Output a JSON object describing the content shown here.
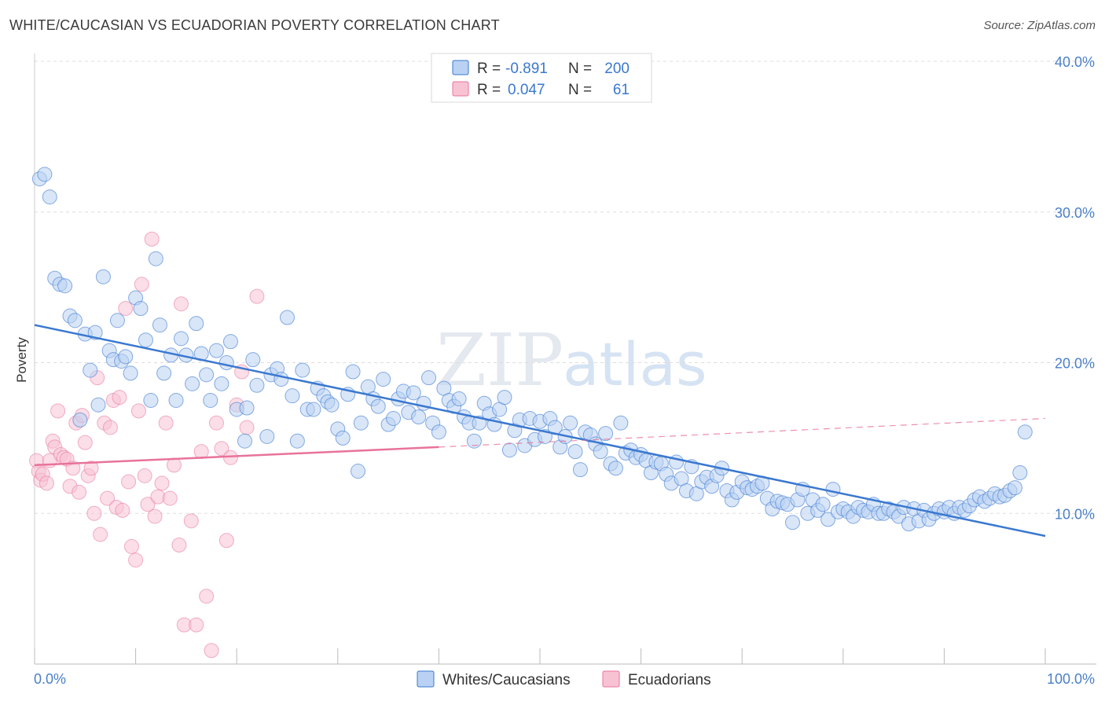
{
  "header": {
    "title": "WHITE/CAUCASIAN VS ECUADORIAN POVERTY CORRELATION CHART",
    "source": "Source: ZipAtlas.com"
  },
  "colors": {
    "blue": "#3a78d0",
    "blue_fill": "#b9d2f3",
    "pink": "#e8739a",
    "pink_fill": "#f7c3d3",
    "grid": "#dddddd"
  },
  "legend": {
    "r_label": "R =",
    "n_label": "N =",
    "rows": [
      {
        "series": "Whites/Caucasians",
        "r": "-0.891",
        "n": "200"
      },
      {
        "series": "Ecuadorians",
        "r": "0.047",
        "n": "61"
      }
    ]
  },
  "chart_data": {
    "type": "scatter",
    "title": "WHITE/CAUCASIAN VS ECUADORIAN POVERTY CORRELATION CHART",
    "xlabel": "",
    "ylabel": "Poverty",
    "xlim": [
      0,
      100
    ],
    "ylim": [
      0,
      40
    ],
    "x_tick_labels": [
      "0.0%",
      "100.0%"
    ],
    "y_ticks": [
      10,
      20,
      30,
      40
    ],
    "y_tick_labels": [
      "10.0%",
      "20.0%",
      "30.0%",
      "40.0%"
    ],
    "grid": "horizontal dashed",
    "legend_position": "top-center",
    "bottom_legend": [
      "Whites/Caucasians",
      "Ecuadorians"
    ],
    "series": [
      {
        "name": "Whites/Caucasians",
        "trend": {
          "x0": 0,
          "y0": 22.5,
          "x1": 100,
          "y1": 8.5
        },
        "points": [
          [
            0.5,
            32.2
          ],
          [
            1,
            32.5
          ],
          [
            1.5,
            31
          ],
          [
            2,
            25.6
          ],
          [
            2.5,
            25.2
          ],
          [
            3,
            25.1
          ],
          [
            3.5,
            23.1
          ],
          [
            4,
            22.8
          ],
          [
            4.5,
            16.2
          ],
          [
            5,
            21.9
          ],
          [
            5.5,
            19.5
          ],
          [
            6,
            22
          ],
          [
            6.3,
            17.2
          ],
          [
            6.8,
            25.7
          ],
          [
            7.4,
            20.8
          ],
          [
            7.8,
            20.2
          ],
          [
            8.2,
            22.8
          ],
          [
            8.6,
            20.1
          ],
          [
            9,
            20.4
          ],
          [
            9.5,
            19.3
          ],
          [
            10,
            24.3
          ],
          [
            10.5,
            23.6
          ],
          [
            11,
            21.5
          ],
          [
            11.5,
            17.5
          ],
          [
            12,
            26.9
          ],
          [
            12.4,
            22.5
          ],
          [
            12.8,
            19.3
          ],
          [
            13.5,
            20.5
          ],
          [
            14,
            17.5
          ],
          [
            14.5,
            21.6
          ],
          [
            15,
            20.5
          ],
          [
            15.6,
            18.6
          ],
          [
            16,
            22.6
          ],
          [
            16.5,
            20.6
          ],
          [
            17,
            19.2
          ],
          [
            17.4,
            17.5
          ],
          [
            18,
            20.8
          ],
          [
            18.5,
            18.6
          ],
          [
            19,
            20
          ],
          [
            19.4,
            21.4
          ],
          [
            20,
            16.9
          ],
          [
            20.8,
            14.8
          ],
          [
            21,
            17
          ],
          [
            21.6,
            20.2
          ],
          [
            22,
            18.5
          ],
          [
            23,
            15.1
          ],
          [
            23.4,
            19.2
          ],
          [
            24,
            19.6
          ],
          [
            24.4,
            18.9
          ],
          [
            25,
            23
          ],
          [
            25.5,
            17.8
          ],
          [
            26,
            14.8
          ],
          [
            26.5,
            19.5
          ],
          [
            27,
            16.9
          ],
          [
            27.6,
            16.9
          ],
          [
            28,
            18.3
          ],
          [
            28.6,
            17.8
          ],
          [
            29,
            17.4
          ],
          [
            29.4,
            17.2
          ],
          [
            30,
            15.6
          ],
          [
            30.5,
            15
          ],
          [
            31,
            17.9
          ],
          [
            31.5,
            19.4
          ],
          [
            32,
            12.8
          ],
          [
            32.3,
            16
          ],
          [
            33,
            18.4
          ],
          [
            33.5,
            17.6
          ],
          [
            34,
            17.1
          ],
          [
            34.5,
            18.9
          ],
          [
            35,
            15.9
          ],
          [
            35.5,
            16.3
          ],
          [
            36,
            17.6
          ],
          [
            36.5,
            18.1
          ],
          [
            37,
            16.7
          ],
          [
            37.5,
            18
          ],
          [
            38,
            16.4
          ],
          [
            38.5,
            17.3
          ],
          [
            39,
            19
          ],
          [
            39.4,
            16
          ],
          [
            40,
            15.4
          ],
          [
            40.5,
            18.3
          ],
          [
            41,
            17.5
          ],
          [
            41.5,
            17.1
          ],
          [
            42,
            17.6
          ],
          [
            42.5,
            16.4
          ],
          [
            43,
            16
          ],
          [
            43.5,
            14.8
          ],
          [
            44,
            16
          ],
          [
            44.5,
            17.3
          ],
          [
            45,
            16.6
          ],
          [
            45.5,
            15.9
          ],
          [
            46,
            16.9
          ],
          [
            46.5,
            17.7
          ],
          [
            47,
            14.2
          ],
          [
            47.5,
            15.5
          ],
          [
            48,
            16.2
          ],
          [
            48.5,
            14.5
          ],
          [
            49,
            16.3
          ],
          [
            49.5,
            14.9
          ],
          [
            50,
            16.1
          ],
          [
            50.5,
            15.1
          ],
          [
            51,
            16.3
          ],
          [
            51.5,
            15.7
          ],
          [
            52,
            14.4
          ],
          [
            52.5,
            15.1
          ],
          [
            53,
            16
          ],
          [
            53.5,
            14.1
          ],
          [
            54,
            12.9
          ],
          [
            54.5,
            15.4
          ],
          [
            55,
            15.2
          ],
          [
            55.5,
            14.6
          ],
          [
            56,
            14.1
          ],
          [
            56.5,
            15.3
          ],
          [
            57,
            13.3
          ],
          [
            57.5,
            13
          ],
          [
            58,
            16
          ],
          [
            58.5,
            14
          ],
          [
            59,
            14.2
          ],
          [
            59.5,
            13.7
          ],
          [
            60,
            13.9
          ],
          [
            60.5,
            13.5
          ],
          [
            61,
            12.7
          ],
          [
            61.5,
            13.4
          ],
          [
            62,
            13.3
          ],
          [
            62.5,
            12.6
          ],
          [
            63,
            12
          ],
          [
            63.5,
            13.4
          ],
          [
            64,
            12.3
          ],
          [
            64.5,
            11.5
          ],
          [
            65,
            13.1
          ],
          [
            65.5,
            11.3
          ],
          [
            66,
            12.1
          ],
          [
            66.5,
            12.4
          ],
          [
            67,
            11.8
          ],
          [
            67.5,
            12.5
          ],
          [
            68,
            13
          ],
          [
            68.5,
            11.5
          ],
          [
            69,
            10.9
          ],
          [
            69.5,
            11.4
          ],
          [
            70,
            12.1
          ],
          [
            70.5,
            11.7
          ],
          [
            71,
            11.6
          ],
          [
            71.5,
            11.8
          ],
          [
            72,
            12
          ],
          [
            72.5,
            11
          ],
          [
            73,
            10.3
          ],
          [
            73.5,
            10.8
          ],
          [
            74,
            10.7
          ],
          [
            74.5,
            10.6
          ],
          [
            75,
            9.4
          ],
          [
            75.5,
            10.9
          ],
          [
            76,
            11.6
          ],
          [
            76.5,
            10
          ],
          [
            77,
            10.9
          ],
          [
            77.5,
            10.2
          ],
          [
            78,
            10.6
          ],
          [
            78.5,
            9.6
          ],
          [
            79,
            11.6
          ],
          [
            79.5,
            10.1
          ],
          [
            80,
            10.3
          ],
          [
            80.5,
            10.1
          ],
          [
            81,
            9.8
          ],
          [
            81.5,
            10.4
          ],
          [
            82,
            10.2
          ],
          [
            82.5,
            10.1
          ],
          [
            83,
            10.6
          ],
          [
            83.5,
            10
          ],
          [
            84,
            10
          ],
          [
            84.5,
            10.3
          ],
          [
            85,
            10.1
          ],
          [
            85.5,
            9.8
          ],
          [
            86,
            10.4
          ],
          [
            86.5,
            9.3
          ],
          [
            87,
            10.3
          ],
          [
            87.5,
            9.5
          ],
          [
            88,
            10.2
          ],
          [
            88.5,
            9.6
          ],
          [
            89,
            10
          ],
          [
            89.5,
            10.3
          ],
          [
            90,
            10.1
          ],
          [
            90.5,
            10.4
          ],
          [
            91,
            10
          ],
          [
            91.5,
            10.4
          ],
          [
            92,
            10.2
          ],
          [
            92.5,
            10.5
          ],
          [
            93,
            10.9
          ],
          [
            93.5,
            11.1
          ],
          [
            94,
            10.8
          ],
          [
            94.5,
            11
          ],
          [
            95,
            11.3
          ],
          [
            95.5,
            11.1
          ],
          [
            96,
            11.2
          ],
          [
            96.5,
            11.5
          ],
          [
            97,
            11.7
          ],
          [
            97.5,
            12.7
          ],
          [
            98,
            15.4
          ]
        ]
      },
      {
        "name": "Ecuadorians",
        "trend": {
          "x0": 0,
          "y0": 13.2,
          "x1": 40,
          "y1": 14.4,
          "dashed_x1": 100,
          "dashed_y1": 16.3
        },
        "points": [
          [
            0.2,
            13.5
          ],
          [
            0.4,
            12.8
          ],
          [
            0.6,
            12.2
          ],
          [
            0.8,
            12.6
          ],
          [
            1.2,
            12
          ],
          [
            1.5,
            13.5
          ],
          [
            1.8,
            14.8
          ],
          [
            2,
            14.4
          ],
          [
            2.3,
            16.8
          ],
          [
            2.6,
            13.9
          ],
          [
            2.9,
            13.7
          ],
          [
            3.2,
            13.6
          ],
          [
            3.5,
            11.8
          ],
          [
            3.8,
            13
          ],
          [
            4.1,
            16
          ],
          [
            4.4,
            11.4
          ],
          [
            4.7,
            16.5
          ],
          [
            5,
            14.7
          ],
          [
            5.3,
            12.5
          ],
          [
            5.6,
            13
          ],
          [
            5.9,
            10
          ],
          [
            6.2,
            19
          ],
          [
            6.5,
            8.6
          ],
          [
            6.9,
            16
          ],
          [
            7.2,
            11
          ],
          [
            7.5,
            15.7
          ],
          [
            7.8,
            17.5
          ],
          [
            8.1,
            10.4
          ],
          [
            8.4,
            17.7
          ],
          [
            8.7,
            10.2
          ],
          [
            9,
            23.6
          ],
          [
            9.3,
            12.1
          ],
          [
            9.6,
            7.8
          ],
          [
            10,
            6.9
          ],
          [
            10.3,
            16.8
          ],
          [
            10.6,
            25.2
          ],
          [
            10.9,
            12.5
          ],
          [
            11.2,
            10.6
          ],
          [
            11.6,
            28.2
          ],
          [
            11.9,
            9.8
          ],
          [
            12.2,
            11.1
          ],
          [
            12.6,
            12
          ],
          [
            13,
            16
          ],
          [
            13.4,
            11
          ],
          [
            13.8,
            13.2
          ],
          [
            14.3,
            7.9
          ],
          [
            14.5,
            23.9
          ],
          [
            14.8,
            2.6
          ],
          [
            15.5,
            9.5
          ],
          [
            16,
            2.6
          ],
          [
            16.5,
            14.1
          ],
          [
            17,
            4.5
          ],
          [
            17.5,
            0.9
          ],
          [
            18,
            16
          ],
          [
            18.5,
            14.3
          ],
          [
            19,
            8.2
          ],
          [
            19.4,
            13.7
          ],
          [
            20,
            17.2
          ],
          [
            20.5,
            19.4
          ],
          [
            21,
            15.7
          ],
          [
            22,
            24.4
          ]
        ]
      }
    ]
  },
  "bottom_legend": {
    "items": [
      "Whites/Caucasians",
      "Ecuadorians"
    ]
  },
  "watermark": {
    "zip": "ZIP",
    "atlas": "atlas"
  }
}
